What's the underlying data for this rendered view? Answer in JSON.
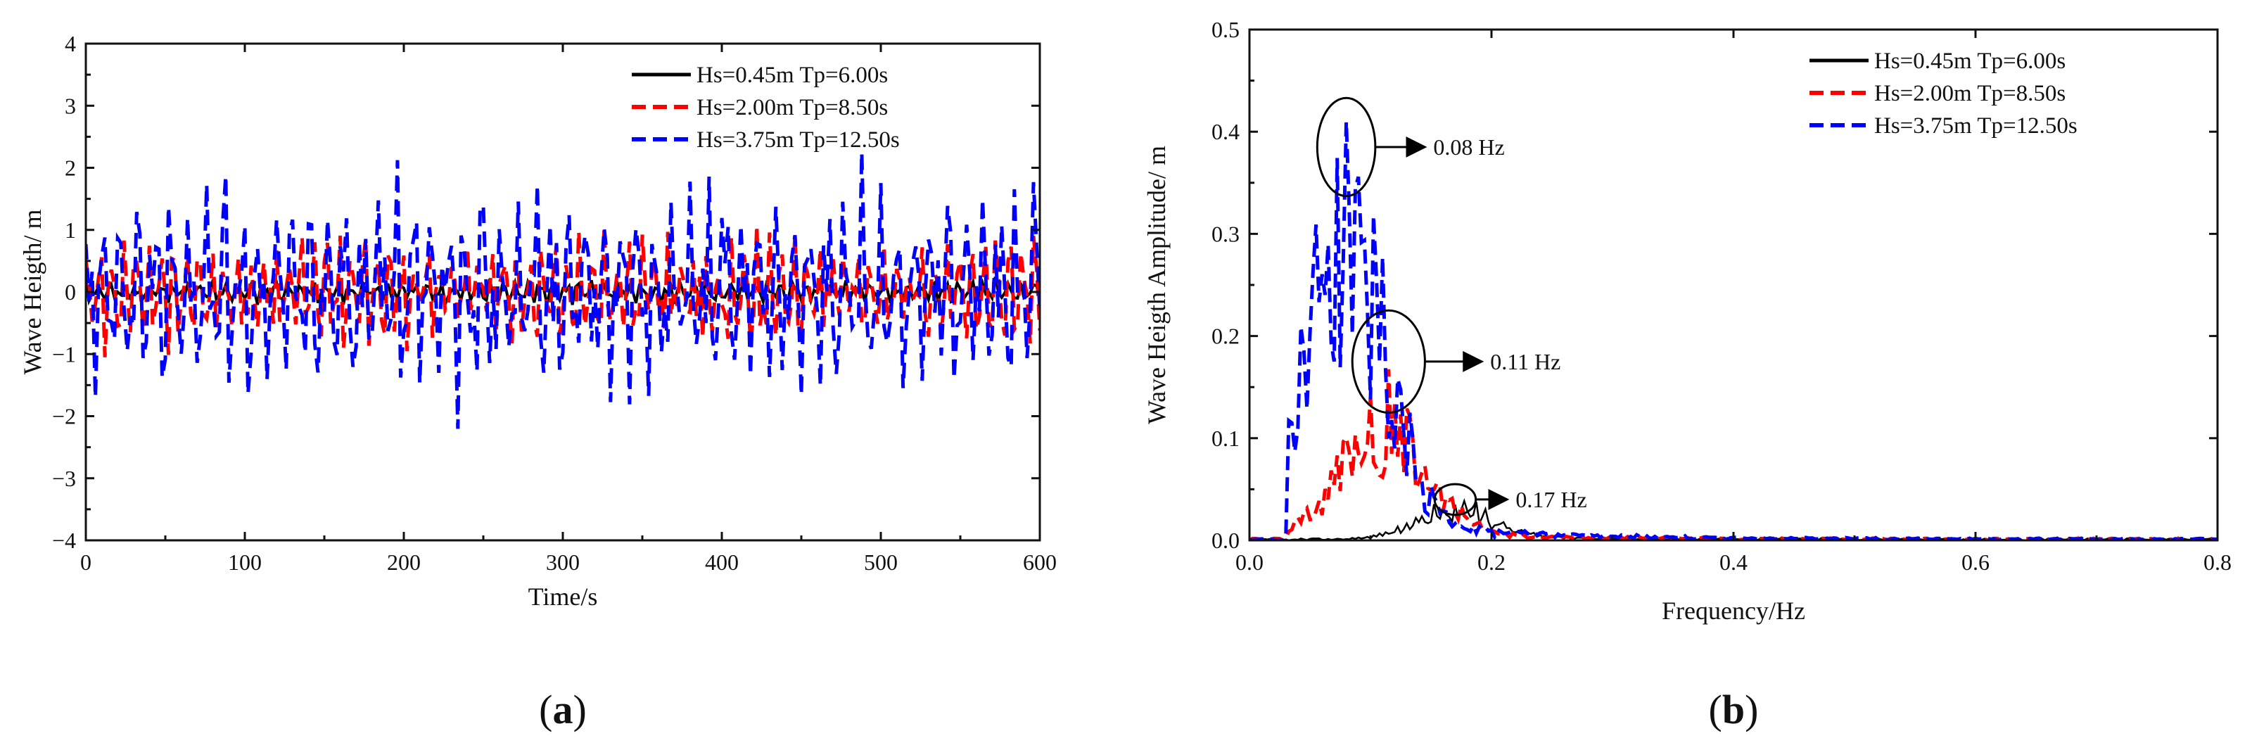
{
  "chart_data": [
    {
      "panel": "a",
      "type": "line",
      "title": "",
      "xlabel": "Time/s",
      "ylabel": "Wave Heigth/ m",
      "xlim": [
        0,
        600
      ],
      "ylim": [
        -4,
        4
      ],
      "xticks": [
        0,
        100,
        200,
        300,
        400,
        500,
        600
      ],
      "yticks": [
        -4,
        -3,
        -2,
        -1,
        0,
        1,
        2,
        3,
        4
      ],
      "xtick_labels": [
        "0",
        "100",
        "200",
        "300",
        "400",
        "500",
        "600"
      ],
      "ytick_labels": [
        "−4",
        "−3",
        "−2",
        "−1",
        "0",
        "1",
        "2",
        "3",
        "4"
      ],
      "legend_position": "top-right",
      "series": [
        {
          "name": "Hs=0.45m Tp=6.00s",
          "color": "#000000",
          "style": "solid",
          "amplitude": 0.15,
          "seed": 11
        },
        {
          "name": "Hs=2.00m Tp=8.50s",
          "color": "#ff0000",
          "style": "dashed",
          "amplitude": 0.75,
          "seed": 23
        },
        {
          "name": "Hs=3.75m Tp=12.50s",
          "color": "#0000ff",
          "style": "dashed",
          "amplitude": 1.35,
          "seed": 37
        }
      ],
      "sample_step": 2,
      "grid": false
    },
    {
      "panel": "b",
      "type": "line",
      "title": "",
      "xlabel": "Frequency/Hz",
      "ylabel": "Wave Heigth Amplitude/ m",
      "xlim": [
        0.0,
        0.8
      ],
      "ylim": [
        0.0,
        0.5
      ],
      "xticks": [
        0.0,
        0.2,
        0.4,
        0.6,
        0.8
      ],
      "yticks": [
        0.0,
        0.1,
        0.2,
        0.3,
        0.4,
        0.5
      ],
      "xtick_labels": [
        "0.0",
        "0.2",
        "0.4",
        "0.6",
        "0.8"
      ],
      "ytick_labels": [
        "0.0",
        "0.1",
        "0.2",
        "0.3",
        "0.4",
        "0.5"
      ],
      "legend_position": "top-right",
      "series": [
        {
          "name": "Hs=0.45m Tp=6.00s",
          "color": "#000000",
          "style": "solid",
          "peak_freq": 0.17,
          "peak_amp": 0.04,
          "width": 0.045,
          "seed": 5
        },
        {
          "name": "Hs=2.00m Tp=8.50s",
          "color": "#ff0000",
          "style": "dashed",
          "peak_freq": 0.11,
          "peak_amp": 0.16,
          "width": 0.05,
          "seed": 9
        },
        {
          "name": "Hs=3.75m Tp=12.50s",
          "color": "#0000ff",
          "style": "dashed",
          "peak_freq": 0.08,
          "peak_amp": 0.42,
          "width": 0.045,
          "seed": 17
        }
      ],
      "annotations": [
        {
          "label": "0.08 Hz",
          "freq": 0.08,
          "amp": 0.385,
          "rx_freq": 0.024,
          "ry_amp": 0.048,
          "arrow_to_freq": 0.145
        },
        {
          "label": "0.11 Hz",
          "freq": 0.115,
          "amp": 0.175,
          "rx_freq": 0.03,
          "ry_amp": 0.05,
          "arrow_to_freq": 0.192
        },
        {
          "label": "0.17 Hz",
          "freq": 0.17,
          "amp": 0.04,
          "rx_freq": 0.017,
          "ry_amp": 0.015,
          "arrow_to_freq": 0.213
        }
      ],
      "sample_step": 0.0025,
      "grid": false
    }
  ],
  "panel_labels": [
    {
      "open": "(",
      "letter": "a",
      "close": ")"
    },
    {
      "open": "(",
      "letter": "b",
      "close": ")"
    }
  ]
}
